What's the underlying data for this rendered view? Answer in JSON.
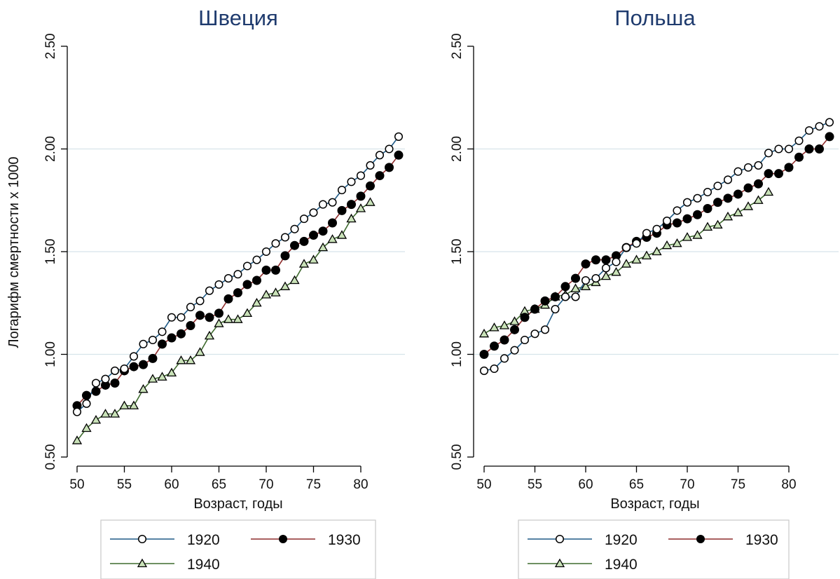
{
  "ylabel": "Логарифм смертности x 1000",
  "colors": {
    "1920": "#1f5a86",
    "1930": "#8e2b2b",
    "1940": "#3f6b2f",
    "grid": "#d7e4ea"
  },
  "chart_data": [
    {
      "type": "line",
      "title": "Швеция",
      "xlabel": "Возраст, годы",
      "ylabel": "Логарифм смертности x 1000",
      "xlim": [
        50,
        84
      ],
      "ylim": [
        0.5,
        2.5
      ],
      "xticks": [
        "50",
        "55",
        "60",
        "65",
        "70",
        "75",
        "80"
      ],
      "yticks": [
        "0.50",
        "1.00",
        "1.50",
        "2.00",
        "2.50"
      ],
      "grid": true,
      "legend": "bottom",
      "series": [
        {
          "name": "1920",
          "marker": "hollow-circle",
          "x": [
            50,
            51,
            52,
            53,
            54,
            55,
            56,
            57,
            58,
            59,
            60,
            61,
            62,
            63,
            64,
            65,
            66,
            67,
            68,
            69,
            70,
            71,
            72,
            73,
            74,
            75,
            76,
            77,
            78,
            79,
            80,
            81,
            82,
            83,
            84
          ],
          "values": [
            0.72,
            0.76,
            0.86,
            0.88,
            0.92,
            0.93,
            0.99,
            1.05,
            1.07,
            1.11,
            1.18,
            1.18,
            1.23,
            1.26,
            1.31,
            1.34,
            1.37,
            1.39,
            1.43,
            1.46,
            1.5,
            1.54,
            1.57,
            1.61,
            1.66,
            1.69,
            1.73,
            1.74,
            1.8,
            1.84,
            1.87,
            1.92,
            1.97,
            2.0,
            2.06
          ]
        },
        {
          "name": "1930",
          "marker": "filled-circle",
          "x": [
            50,
            51,
            52,
            53,
            54,
            55,
            56,
            57,
            58,
            59,
            60,
            61,
            62,
            63,
            64,
            65,
            66,
            67,
            68,
            69,
            70,
            71,
            72,
            73,
            74,
            75,
            76,
            77,
            78,
            79,
            80,
            81,
            82,
            83,
            84
          ],
          "values": [
            0.75,
            0.8,
            0.82,
            0.85,
            0.86,
            0.92,
            0.94,
            0.95,
            0.98,
            1.05,
            1.08,
            1.1,
            1.14,
            1.19,
            1.18,
            1.2,
            1.27,
            1.3,
            1.34,
            1.36,
            1.41,
            1.41,
            1.48,
            1.53,
            1.55,
            1.58,
            1.6,
            1.64,
            1.7,
            1.73,
            1.77,
            1.82,
            1.87,
            1.91,
            1.97
          ]
        },
        {
          "name": "1940",
          "marker": "hollow-triangle",
          "x": [
            50,
            51,
            52,
            53,
            54,
            55,
            56,
            57,
            58,
            59,
            60,
            61,
            62,
            63,
            64,
            65,
            66,
            67,
            68,
            69,
            70,
            71,
            72,
            73,
            74,
            75,
            76,
            77,
            78,
            79,
            80,
            81
          ],
          "values": [
            0.58,
            0.64,
            0.68,
            0.71,
            0.71,
            0.75,
            0.75,
            0.83,
            0.88,
            0.89,
            0.91,
            0.97,
            0.97,
            1.01,
            1.09,
            1.15,
            1.17,
            1.17,
            1.2,
            1.25,
            1.29,
            1.3,
            1.33,
            1.36,
            1.44,
            1.46,
            1.52,
            1.56,
            1.58,
            1.66,
            1.71,
            1.74
          ]
        }
      ]
    },
    {
      "type": "line",
      "title": "Польша",
      "xlabel": "Возраст, годы",
      "xlim": [
        50,
        84
      ],
      "ylim": [
        0.5,
        2.5
      ],
      "xticks": [
        "50",
        "55",
        "60",
        "65",
        "70",
        "75",
        "80"
      ],
      "yticks": [
        "0.50",
        "1.00",
        "1.50",
        "2.00",
        "2.50"
      ],
      "grid": true,
      "legend": "bottom",
      "series": [
        {
          "name": "1920",
          "marker": "hollow-circle",
          "x": [
            50,
            51,
            52,
            53,
            54,
            55,
            56,
            57,
            58,
            59,
            60,
            61,
            62,
            63,
            64,
            65,
            66,
            67,
            68,
            69,
            70,
            71,
            72,
            73,
            74,
            75,
            76,
            77,
            78,
            79,
            80,
            81,
            82,
            83,
            84
          ],
          "values": [
            0.92,
            0.93,
            0.98,
            1.02,
            1.07,
            1.1,
            1.12,
            1.22,
            1.28,
            1.28,
            1.36,
            1.37,
            1.42,
            1.45,
            1.52,
            1.54,
            1.59,
            1.61,
            1.65,
            1.7,
            1.74,
            1.76,
            1.79,
            1.82,
            1.85,
            1.89,
            1.91,
            1.92,
            1.98,
            2.0,
            2.0,
            2.04,
            2.09,
            2.11,
            2.13
          ]
        },
        {
          "name": "1930",
          "marker": "filled-circle",
          "x": [
            50,
            51,
            52,
            53,
            54,
            55,
            56,
            57,
            58,
            59,
            60,
            61,
            62,
            63,
            64,
            65,
            66,
            67,
            68,
            69,
            70,
            71,
            72,
            73,
            74,
            75,
            76,
            77,
            78,
            79,
            80,
            81,
            82,
            83,
            84
          ],
          "values": [
            1.0,
            1.04,
            1.07,
            1.12,
            1.18,
            1.22,
            1.26,
            1.28,
            1.33,
            1.37,
            1.44,
            1.46,
            1.46,
            1.48,
            1.52,
            1.55,
            1.57,
            1.59,
            1.63,
            1.64,
            1.66,
            1.68,
            1.71,
            1.74,
            1.76,
            1.78,
            1.81,
            1.83,
            1.88,
            1.88,
            1.91,
            1.96,
            2.0,
            2.0,
            2.06
          ]
        },
        {
          "name": "1940",
          "marker": "hollow-triangle",
          "x": [
            50,
            51,
            52,
            53,
            54,
            55,
            56,
            57,
            58,
            59,
            60,
            61,
            62,
            63,
            64,
            65,
            66,
            67,
            68,
            69,
            70,
            71,
            72,
            73,
            74,
            75,
            76,
            77,
            78
          ],
          "values": [
            1.1,
            1.13,
            1.14,
            1.16,
            1.21,
            1.22,
            1.24,
            1.28,
            1.29,
            1.32,
            1.33,
            1.35,
            1.38,
            1.4,
            1.44,
            1.46,
            1.48,
            1.5,
            1.53,
            1.54,
            1.57,
            1.58,
            1.62,
            1.63,
            1.67,
            1.69,
            1.72,
            1.75,
            1.79
          ]
        }
      ]
    }
  ]
}
